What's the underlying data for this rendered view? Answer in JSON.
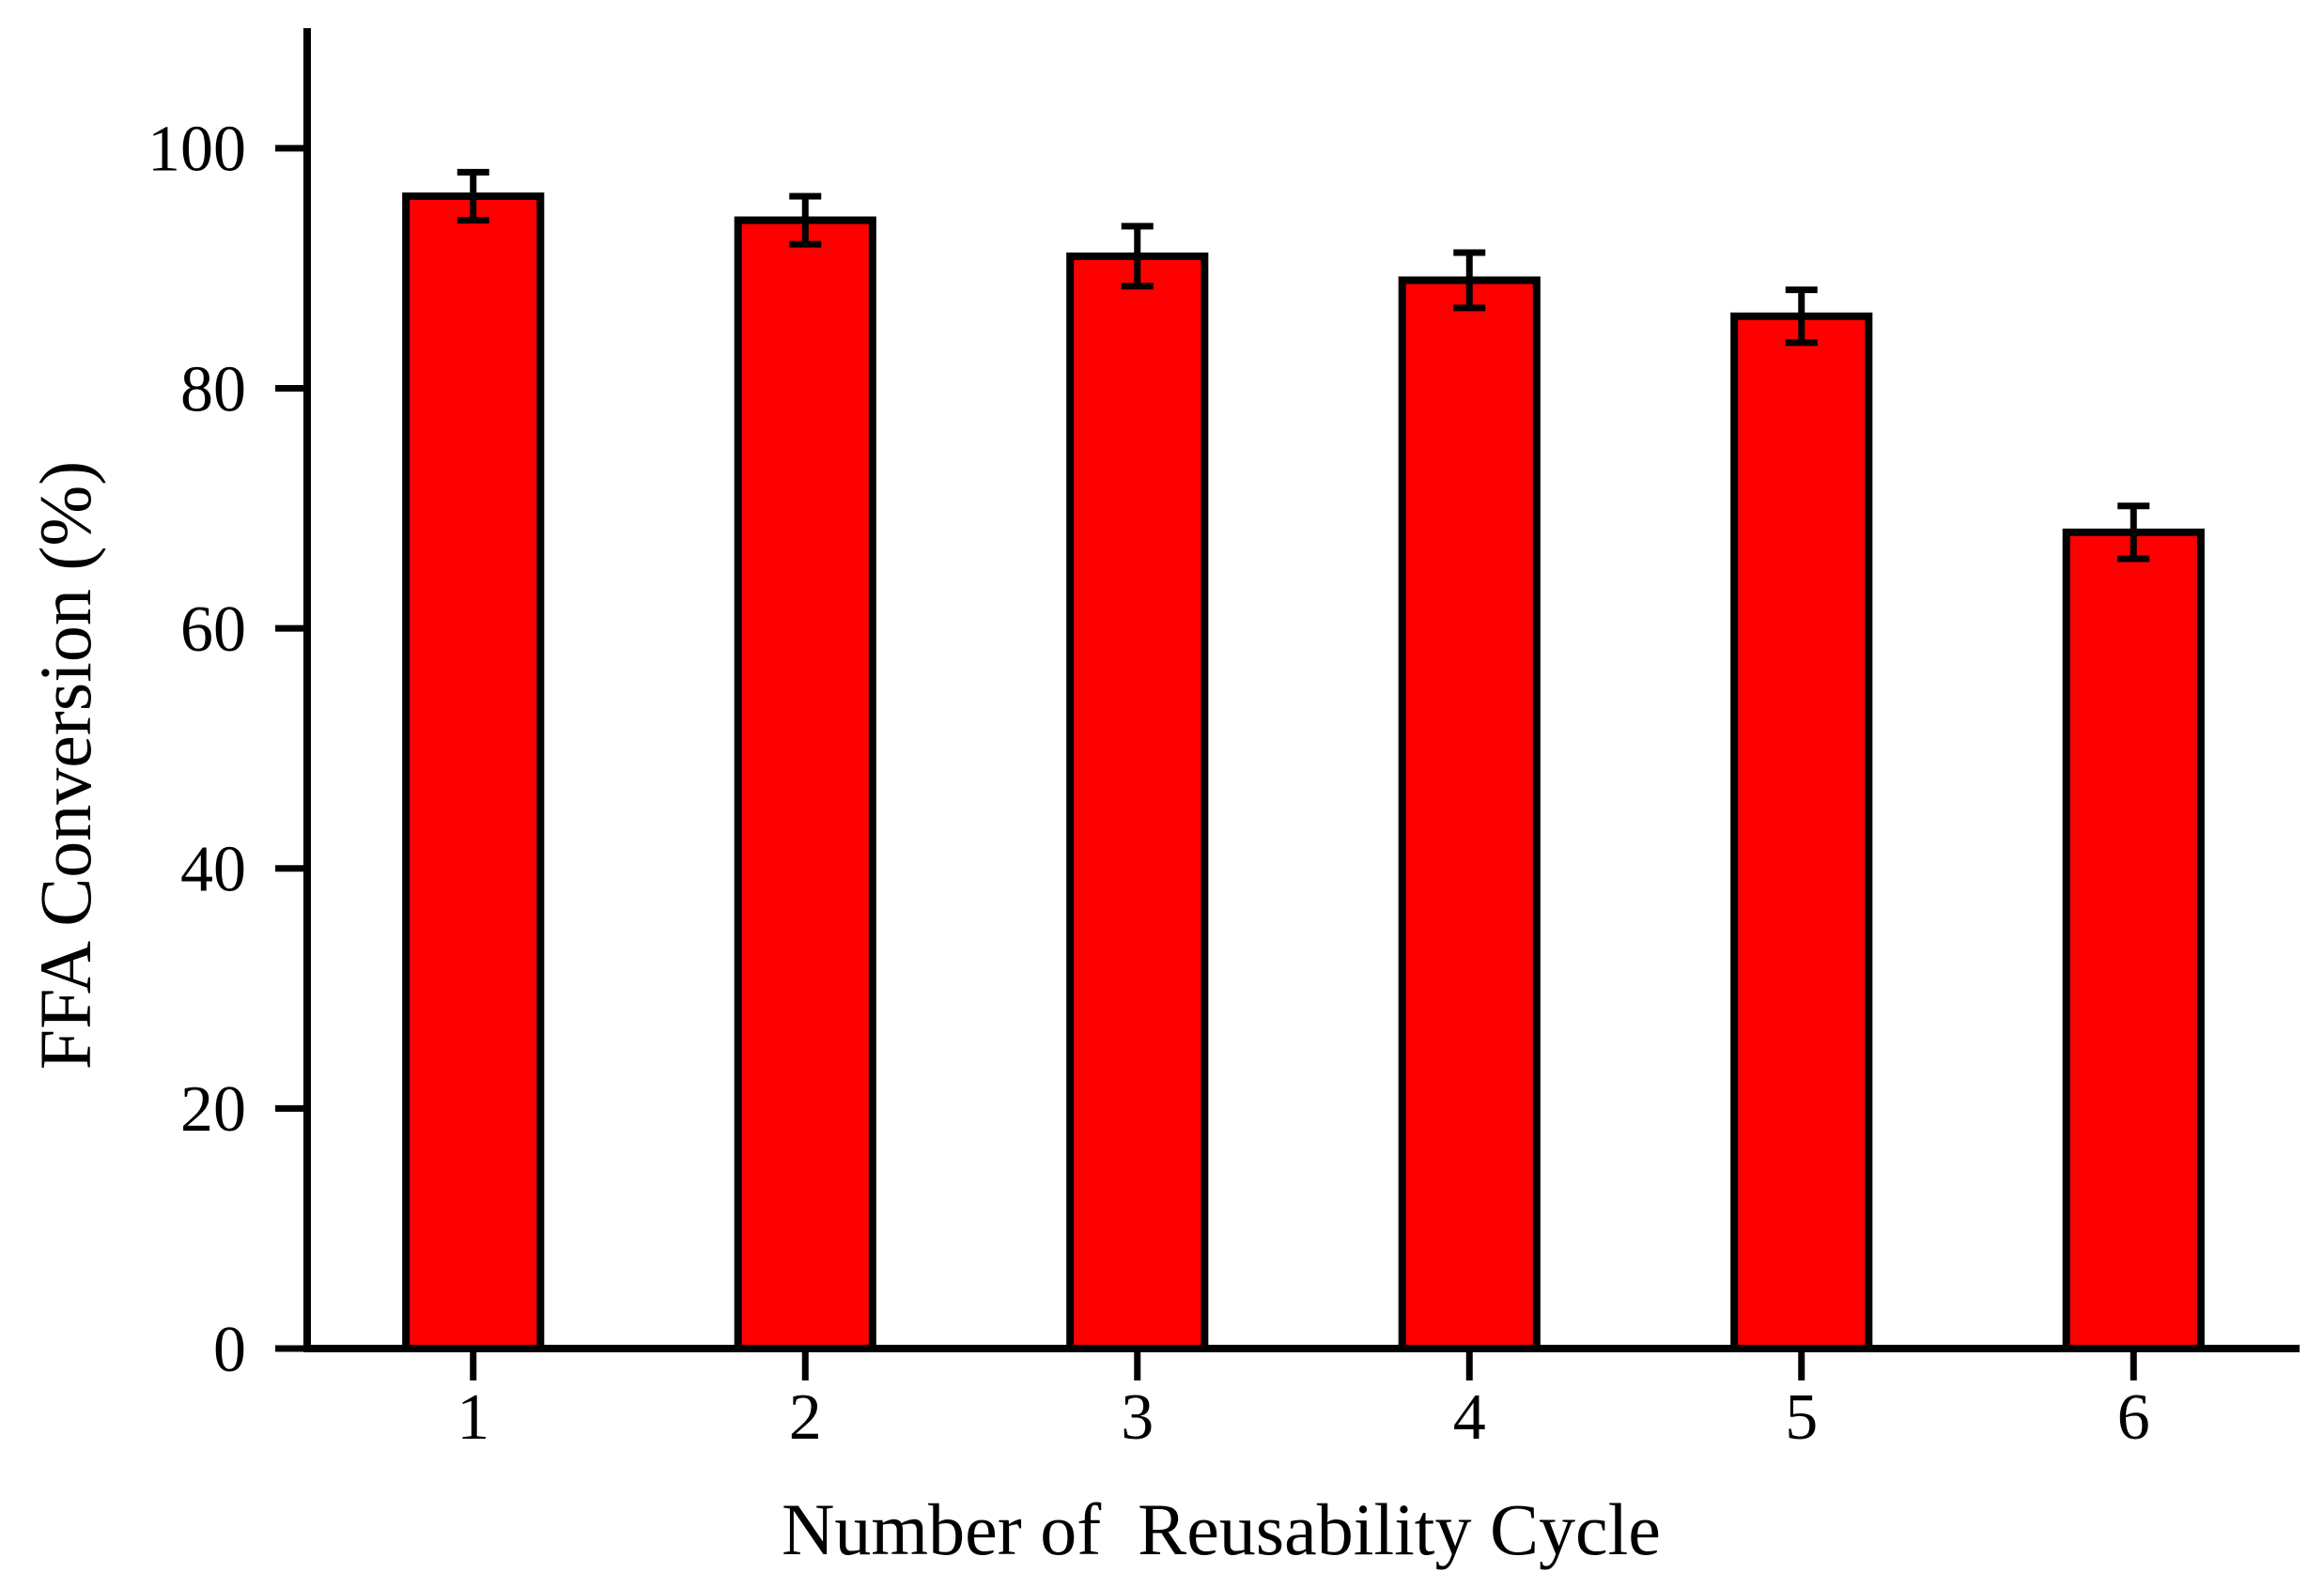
{
  "chart_data": {
    "type": "bar",
    "title": "",
    "xlabel": "Number of  Reusability Cycle",
    "ylabel": "FFA Conversion (%)",
    "categories": [
      "1",
      "2",
      "3",
      "4",
      "5",
      "6"
    ],
    "values": [
      96,
      94,
      91,
      89,
      86,
      68
    ],
    "errors": [
      2,
      2,
      2.5,
      2.3,
      2.2,
      2.2
    ],
    "ylim": [
      0,
      110
    ],
    "yticks": [
      0,
      20,
      40,
      60,
      80,
      100
    ],
    "xlim": [
      0.5,
      6.5
    ],
    "grid": false,
    "legend": "none",
    "error_bars": true,
    "bar_color": "#FF0000",
    "bar_edge_color": "#000000",
    "axis_color": "#000000",
    "text_color": "#000000",
    "background_color": "#FFFFFF"
  }
}
